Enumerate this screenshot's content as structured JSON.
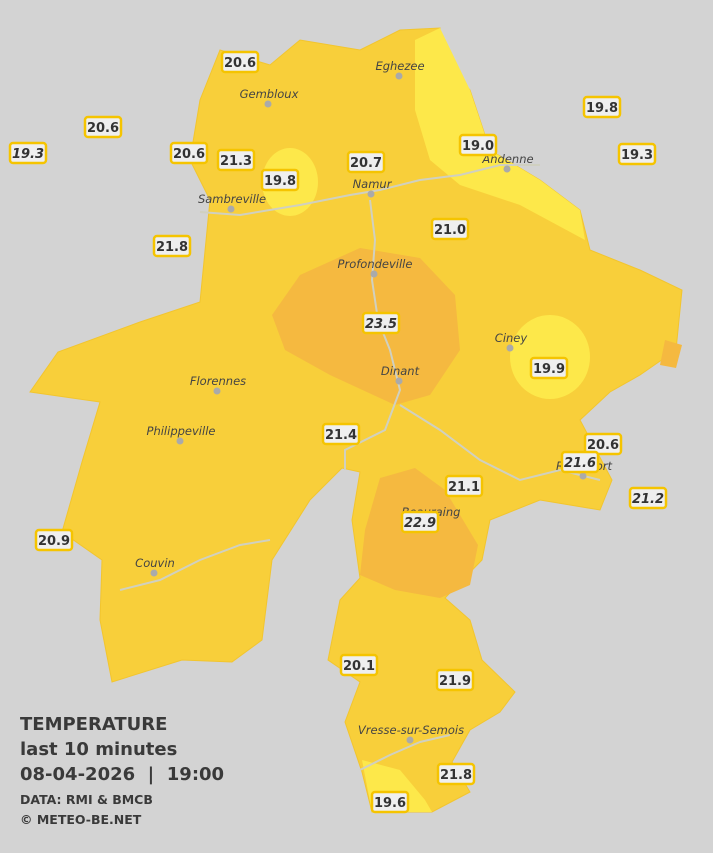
{
  "legend": {
    "title": "TEMPERATURE",
    "subtitle": "last 10 minutes",
    "datetime": "08-04-2026  |  19:00",
    "source": "DATA: RMI & BMCB",
    "credit": "© METEO-BE.NET"
  },
  "towns": [
    "Eghezee",
    "Gembloux",
    "Andenne",
    "Namur",
    "Sambreville",
    "Profondeville",
    "Ciney",
    "Dinant",
    "Florennes",
    "Philippeville",
    "Beauraing",
    "Rochefort",
    "Couvin",
    "Vresse-sur-Semois"
  ],
  "stations": [
    "20.6",
    "20.6",
    "19.3",
    "20.6",
    "21.3",
    "19.8",
    "20.7",
    "19.0",
    "19.8",
    "19.3",
    "21.8",
    "21.0",
    "23.5",
    "19.9",
    "21.4",
    "20.6",
    "21.6",
    "21.1",
    "22.9",
    "21.2",
    "20.9",
    "20.1",
    "21.9",
    "21.8",
    "19.6"
  ]
}
